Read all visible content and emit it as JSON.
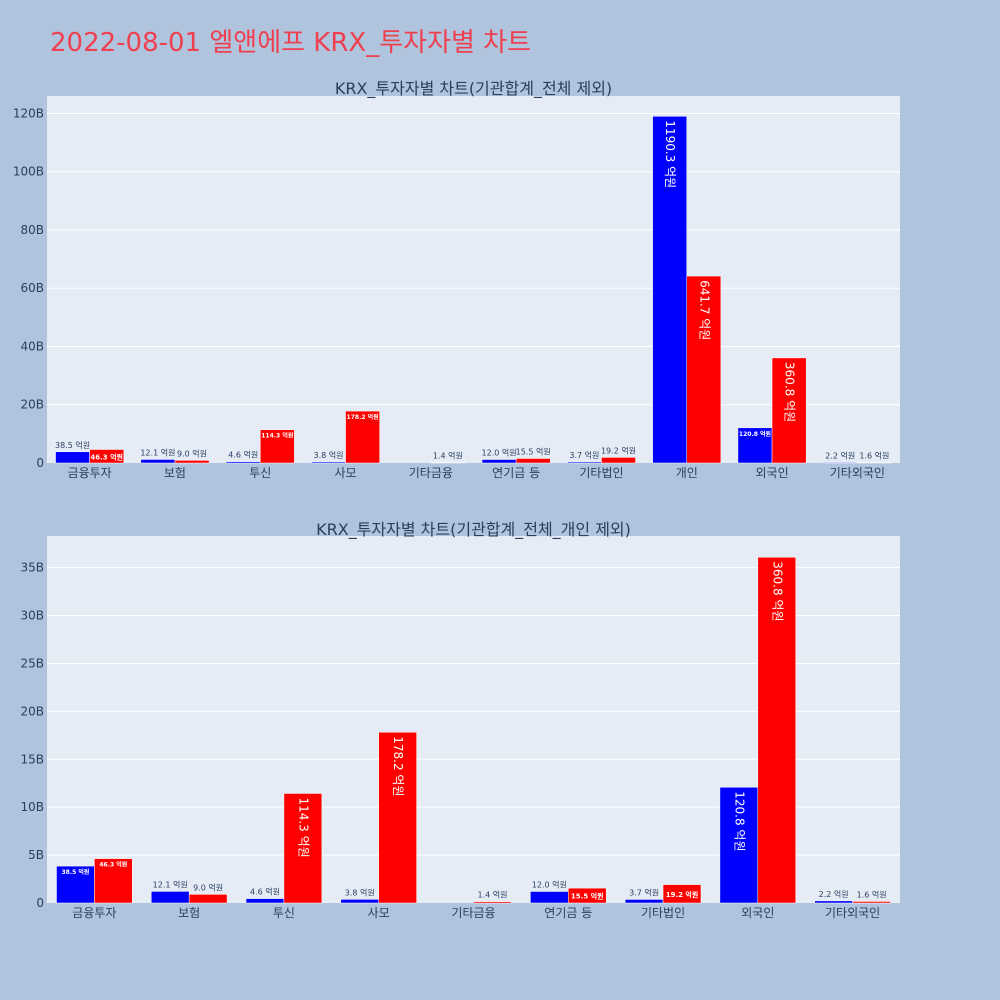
{
  "page": {
    "title": "2022-08-01 엘앤에프 KRX_투자자별 차트"
  },
  "colors": {
    "buy": "#0000ff",
    "sell": "#ff0000",
    "plot_bg": "#e5ecf6",
    "grid": "#ffffff",
    "page_bg": "#b0c4de",
    "title": "#ef4050",
    "text": "#2a3f5f"
  },
  "chart_data": [
    {
      "type": "bar",
      "title": "KRX_투자자별 차트(기관합계_전체 제외)",
      "categories": [
        "금융투자",
        "보험",
        "투신",
        "사모",
        "기타금융",
        "연기금 등",
        "기타법인",
        "개인",
        "외국인",
        "기타외국인"
      ],
      "series": [
        {
          "color": "#0000ff",
          "values": [
            3.85,
            1.21,
            0.46,
            0.38,
            0.0,
            1.2,
            0.37,
            119.03,
            12.08,
            0.22
          ],
          "labels": [
            "38.5 억원",
            "12.1 억원",
            "4.6 억원",
            "3.8 억원",
            "",
            "12.0 억원",
            "3.7 억원",
            "1190.3 억원",
            "120.8 억원",
            "2.2 억원"
          ]
        },
        {
          "color": "#ff0000",
          "values": [
            4.63,
            0.9,
            11.43,
            17.82,
            0.14,
            1.55,
            1.92,
            64.17,
            36.08,
            0.16
          ],
          "labels": [
            "46.3 억원",
            "9.0 억원",
            "114.3 억원",
            "178.2 억원",
            "1.4 억원",
            "15.5 억원",
            "19.2 억원",
            "641.7 억원",
            "360.8 억원",
            "1.6 억원"
          ]
        }
      ],
      "ylim": [
        0,
        126
      ],
      "yticks": [
        0,
        20,
        40,
        60,
        80,
        100,
        120
      ],
      "ytick_labels": [
        "0",
        "20B",
        "40B",
        "60B",
        "80B",
        "100B",
        "120B"
      ],
      "grid": true,
      "legend": "none"
    },
    {
      "type": "bar",
      "title": "KRX_투자자별 차트(기관합계_전체_개인 제외)",
      "categories": [
        "금융투자",
        "보험",
        "투신",
        "사모",
        "기타금융",
        "연기금 등",
        "기타법인",
        "외국인",
        "기타외국인"
      ],
      "series": [
        {
          "color": "#0000ff",
          "values": [
            3.85,
            1.21,
            0.46,
            0.38,
            0.0,
            1.2,
            0.37,
            12.08,
            0.22
          ],
          "labels": [
            "38.5 억원",
            "12.1 억원",
            "4.6 억원",
            "3.8 억원",
            "",
            "12.0 억원",
            "3.7 억원",
            "120.8 억원",
            "2.2 억원"
          ]
        },
        {
          "color": "#ff0000",
          "values": [
            4.63,
            0.9,
            11.43,
            17.82,
            0.14,
            1.55,
            1.92,
            36.08,
            0.16
          ],
          "labels": [
            "46.3 억원",
            "9.0 억원",
            "114.3 억원",
            "178.2 억원",
            "1.4 억원",
            "15.5 억원",
            "19.2 억원",
            "360.8 억원",
            "1.6 억원"
          ]
        }
      ],
      "ylim": [
        0,
        38.3
      ],
      "yticks": [
        0,
        5,
        10,
        15,
        20,
        25,
        30,
        35
      ],
      "ytick_labels": [
        "0",
        "5B",
        "10B",
        "15B",
        "20B",
        "25B",
        "30B",
        "35B"
      ],
      "grid": true,
      "legend": "none"
    }
  ]
}
